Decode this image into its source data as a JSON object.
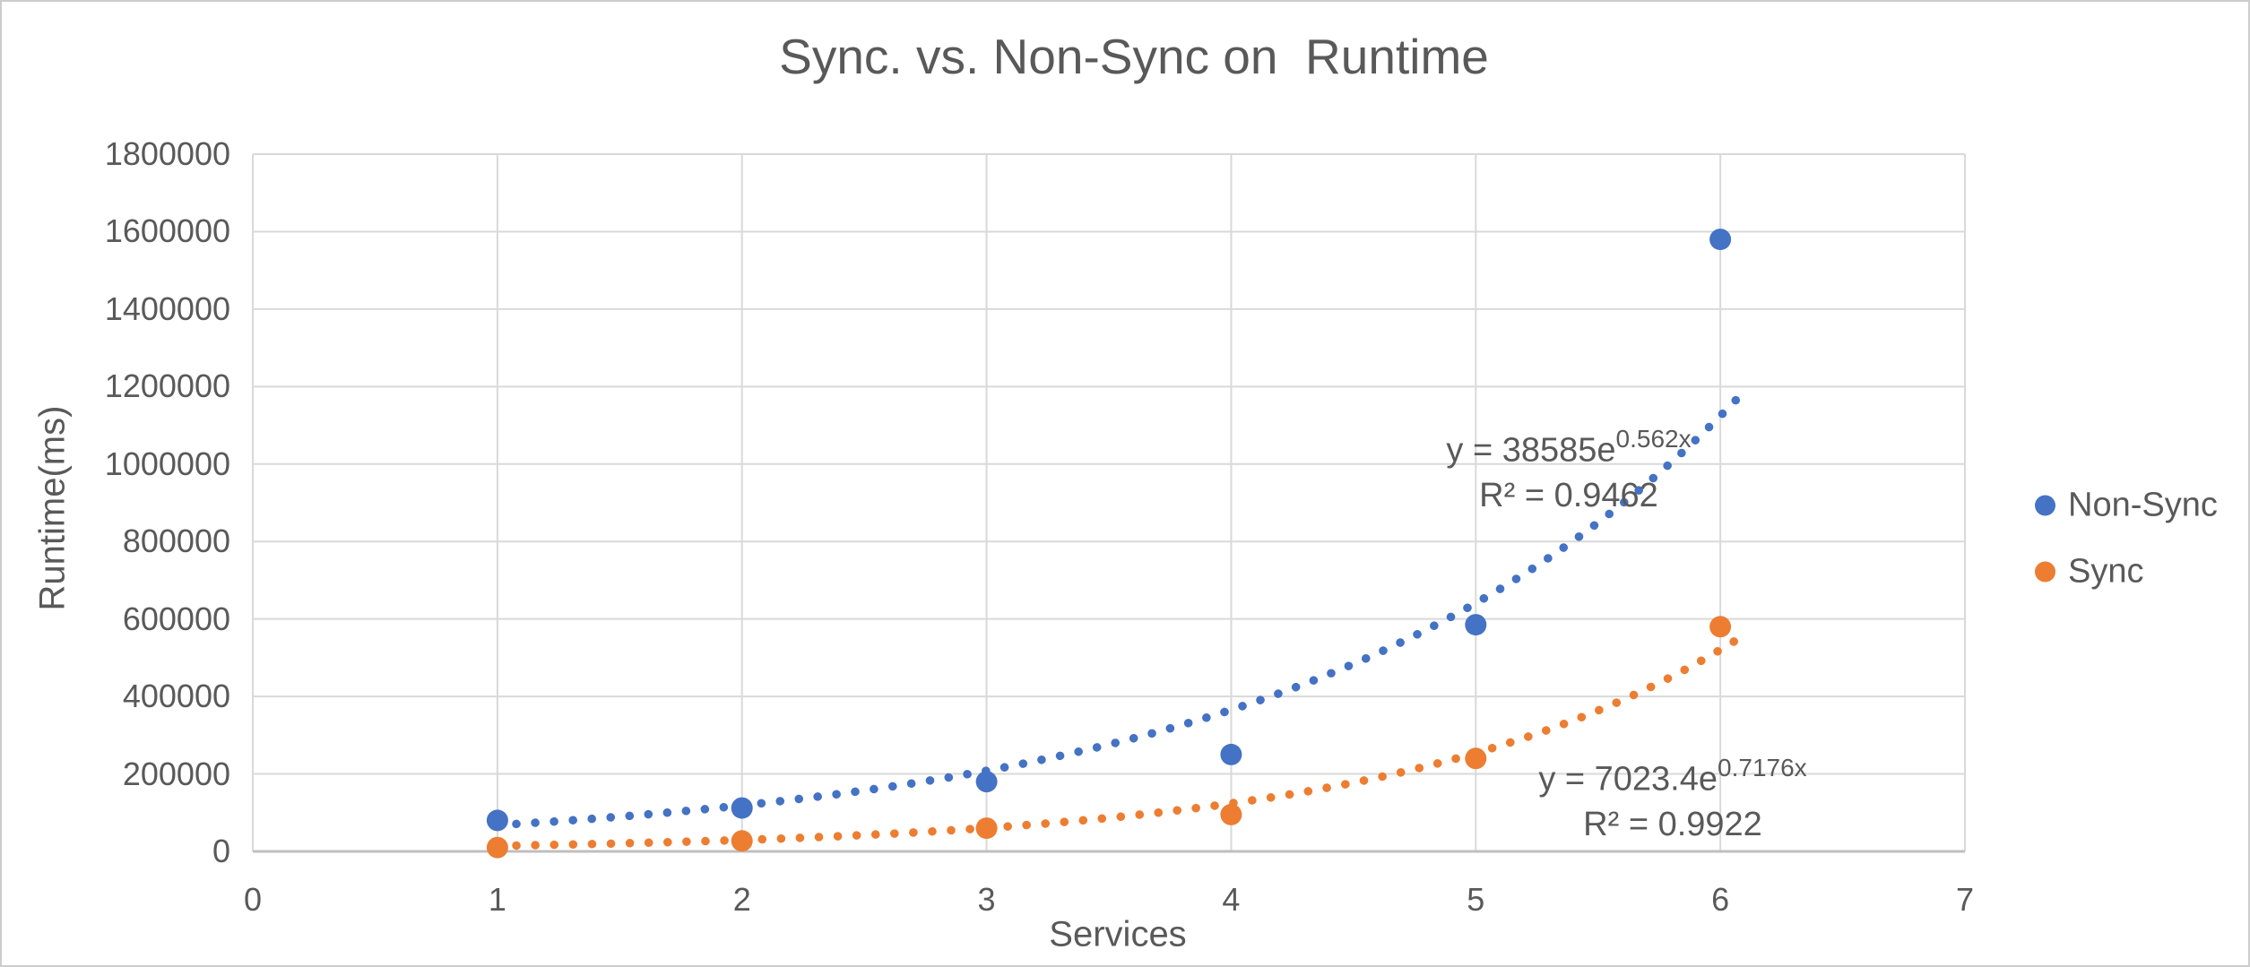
{
  "chart_data": {
    "type": "scatter",
    "title": "Sync. vs. Non-Sync on  Runtime",
    "xlabel": "Services",
    "ylabel": "Runtime(ms)",
    "xlim": [
      0,
      7
    ],
    "ylim": [
      0,
      1800000
    ],
    "x_ticks": [
      "0",
      "1",
      "2",
      "3",
      "4",
      "5",
      "6",
      "7"
    ],
    "y_ticks": [
      "0",
      "200000",
      "400000",
      "600000",
      "800000",
      "1000000",
      "1200000",
      "1400000",
      "1600000",
      "1800000"
    ],
    "grid": true,
    "legend_position": "right-middle",
    "series": [
      {
        "name": "Non-Sync",
        "color": "#4472C4",
        "x": [
          1,
          2,
          3,
          4,
          5,
          6
        ],
        "values": [
          80000,
          112000,
          180000,
          250000,
          585000,
          1580000
        ],
        "trendline": {
          "type": "exponential",
          "coef": 38585,
          "exp_coef": 0.562,
          "x_range": [
            1,
            6.07
          ],
          "equation_prefix": "y = 38585e",
          "equation_exponent": "0.562x",
          "r_squared": "R² = 0.9462"
        }
      },
      {
        "name": "Sync",
        "color": "#ED7D31",
        "x": [
          1,
          2,
          3,
          4,
          5,
          6
        ],
        "values": [
          10000,
          27000,
          60000,
          95000,
          240000,
          580000
        ],
        "trendline": {
          "type": "exponential",
          "coef": 7023.4,
          "exp_coef": 0.7176,
          "x_range": [
            1,
            6.07
          ],
          "equation_prefix": "y = 7023.4e",
          "equation_exponent": "0.7176x",
          "r_squared": "R² = 0.9922"
        }
      }
    ],
    "colors": {
      "grid": "#D9D9D9",
      "axis": "#BFBFBF",
      "text": "#595959"
    }
  }
}
